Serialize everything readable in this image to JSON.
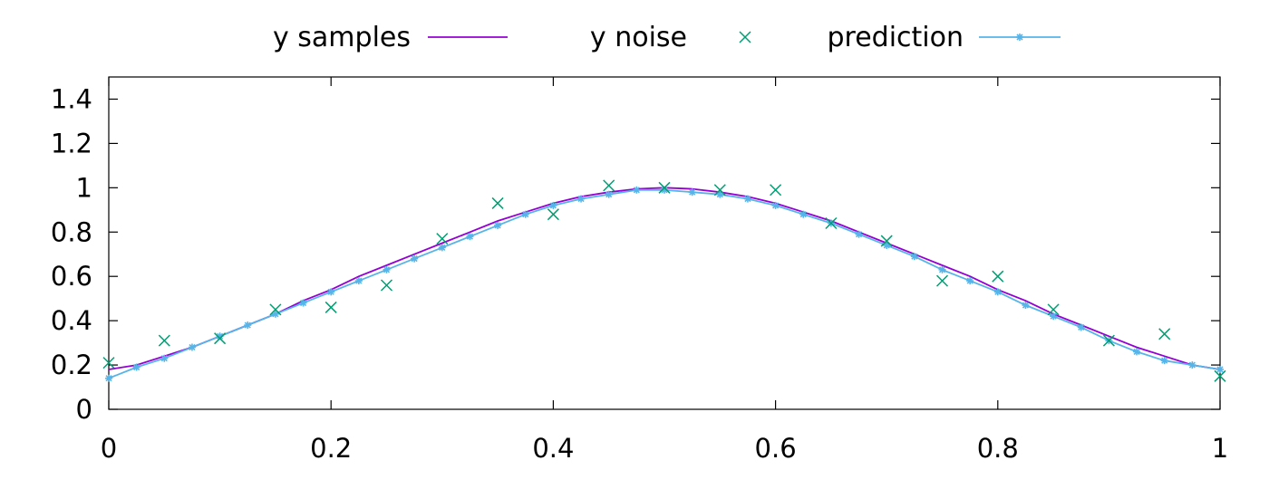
{
  "chart_data": {
    "type": "line",
    "title": "",
    "xlabel": "",
    "ylabel": "",
    "xlim": [
      0,
      1
    ],
    "ylim": [
      0,
      1.5
    ],
    "x_ticks": [
      0,
      0.2,
      0.4,
      0.6,
      0.8,
      1
    ],
    "x_tick_labels": [
      "0",
      "0.2",
      "0.4",
      "0.6",
      "0.8",
      "1"
    ],
    "y_ticks": [
      0,
      0.2,
      0.4,
      0.6,
      0.8,
      1,
      1.2,
      1.4
    ],
    "y_tick_labels": [
      "0",
      "0.2",
      "0.4",
      "0.6",
      "0.8",
      "1",
      "1.2",
      "1.4"
    ],
    "grid": false,
    "legend_position": "top",
    "series": [
      {
        "name": "y samples",
        "style": "line",
        "color": "#9400d3",
        "x": [
          0,
          0.025,
          0.05,
          0.075,
          0.1,
          0.125,
          0.15,
          0.175,
          0.2,
          0.225,
          0.25,
          0.275,
          0.3,
          0.325,
          0.35,
          0.375,
          0.4,
          0.425,
          0.45,
          0.475,
          0.5,
          0.525,
          0.55,
          0.575,
          0.6,
          0.625,
          0.65,
          0.675,
          0.7,
          0.725,
          0.75,
          0.775,
          0.8,
          0.825,
          0.85,
          0.875,
          0.9,
          0.925,
          0.95,
          0.975,
          1
        ],
        "y": [
          0.18,
          0.2,
          0.24,
          0.28,
          0.33,
          0.38,
          0.43,
          0.49,
          0.54,
          0.6,
          0.65,
          0.7,
          0.75,
          0.8,
          0.85,
          0.89,
          0.93,
          0.96,
          0.98,
          0.995,
          1.0,
          0.995,
          0.98,
          0.96,
          0.93,
          0.89,
          0.85,
          0.8,
          0.75,
          0.7,
          0.65,
          0.6,
          0.54,
          0.49,
          0.43,
          0.38,
          0.33,
          0.28,
          0.24,
          0.2,
          0.18
        ]
      },
      {
        "name": "y noise",
        "style": "scatter",
        "color": "#009e73",
        "x": [
          0,
          0.05,
          0.1,
          0.15,
          0.2,
          0.25,
          0.3,
          0.35,
          0.4,
          0.45,
          0.5,
          0.55,
          0.6,
          0.65,
          0.7,
          0.75,
          0.8,
          0.85,
          0.9,
          0.95,
          1
        ],
        "y": [
          0.21,
          0.31,
          0.32,
          0.45,
          0.46,
          0.56,
          0.77,
          0.93,
          0.88,
          1.01,
          1.0,
          0.99,
          0.99,
          0.84,
          0.76,
          0.58,
          0.6,
          0.45,
          0.31,
          0.34,
          0.15
        ]
      },
      {
        "name": "prediction",
        "style": "linespoints",
        "color": "#56b4e9",
        "x": [
          0,
          0.025,
          0.05,
          0.075,
          0.1,
          0.125,
          0.15,
          0.175,
          0.2,
          0.225,
          0.25,
          0.275,
          0.3,
          0.325,
          0.35,
          0.375,
          0.4,
          0.425,
          0.45,
          0.475,
          0.5,
          0.525,
          0.55,
          0.575,
          0.6,
          0.625,
          0.65,
          0.675,
          0.7,
          0.725,
          0.75,
          0.775,
          0.8,
          0.825,
          0.85,
          0.875,
          0.9,
          0.925,
          0.95,
          0.975,
          1
        ],
        "y": [
          0.14,
          0.19,
          0.23,
          0.28,
          0.33,
          0.38,
          0.43,
          0.48,
          0.53,
          0.58,
          0.63,
          0.68,
          0.73,
          0.78,
          0.83,
          0.88,
          0.92,
          0.95,
          0.97,
          0.99,
          0.99,
          0.98,
          0.97,
          0.95,
          0.92,
          0.88,
          0.84,
          0.79,
          0.74,
          0.69,
          0.63,
          0.58,
          0.53,
          0.47,
          0.42,
          0.37,
          0.31,
          0.26,
          0.22,
          0.2,
          0.18
        ]
      }
    ]
  }
}
